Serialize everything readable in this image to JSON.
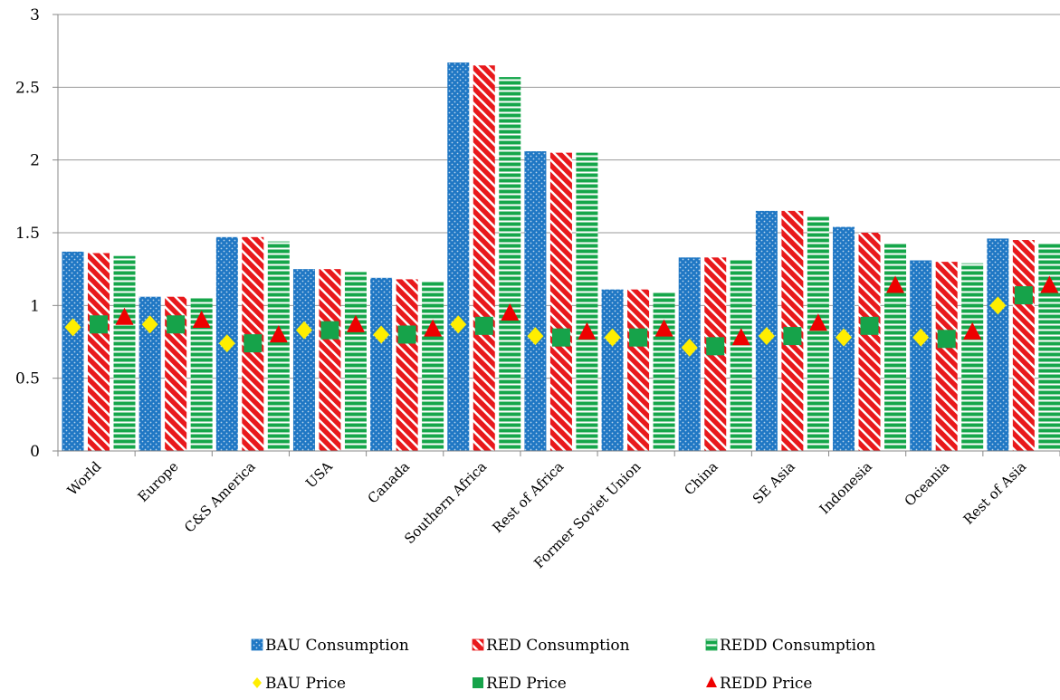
{
  "chart_data": {
    "type": "bar",
    "title": "",
    "xlabel": "",
    "ylabel": "",
    "ylim": [
      0,
      3
    ],
    "yticks": [
      0,
      0.5,
      1,
      1.5,
      2,
      2.5,
      3
    ],
    "ytick_labels": [
      "0",
      "0.5",
      "1",
      "1.5",
      "2",
      "2.5",
      "3"
    ],
    "grid": "horizontal",
    "legend_position": "bottom",
    "categories": [
      "World",
      "Europe",
      "C&S America",
      "USA",
      "Canada",
      "Southern Africa",
      "Rest of Africa",
      "Former Soviet Union",
      "China",
      "SE Asia",
      "Indonesia",
      "Oceania",
      "Rest of Asia"
    ],
    "series": [
      {
        "name": "BAU Consumption",
        "kind": "bar",
        "color": "#1f77c4",
        "pattern": "dots",
        "values": [
          1.37,
          1.06,
          1.47,
          1.25,
          1.19,
          2.67,
          2.06,
          1.11,
          1.33,
          1.65,
          1.54,
          1.31,
          1.46
        ]
      },
      {
        "name": "RED Consumption",
        "kind": "bar",
        "color": "#e8191c",
        "pattern": "diagonal",
        "values": [
          1.36,
          1.06,
          1.47,
          1.25,
          1.18,
          2.65,
          2.05,
          1.11,
          1.33,
          1.65,
          1.5,
          1.3,
          1.45
        ]
      },
      {
        "name": "REDD Consumption",
        "kind": "bar",
        "color": "#15a64a",
        "pattern": "horizontal",
        "values": [
          1.34,
          1.05,
          1.44,
          1.23,
          1.17,
          2.57,
          2.05,
          1.09,
          1.31,
          1.61,
          1.43,
          1.29,
          1.43
        ]
      },
      {
        "name": "BAU Price",
        "kind": "marker",
        "marker": "diamond",
        "color": "#ffee00",
        "values": [
          0.85,
          0.87,
          0.74,
          0.83,
          0.8,
          0.87,
          0.79,
          0.78,
          0.71,
          0.79,
          0.78,
          0.78,
          1.0
        ]
      },
      {
        "name": "RED Price",
        "kind": "marker",
        "marker": "square",
        "color": "#16a34a",
        "values": [
          0.87,
          0.87,
          0.74,
          0.83,
          0.8,
          0.86,
          0.78,
          0.78,
          0.72,
          0.79,
          0.86,
          0.77,
          1.07
        ]
      },
      {
        "name": "REDD Price",
        "kind": "marker",
        "marker": "triangle",
        "color": "#ee0000",
        "values": [
          0.91,
          0.89,
          0.79,
          0.86,
          0.83,
          0.94,
          0.81,
          0.83,
          0.77,
          0.87,
          1.13,
          0.81,
          1.13
        ]
      }
    ]
  }
}
